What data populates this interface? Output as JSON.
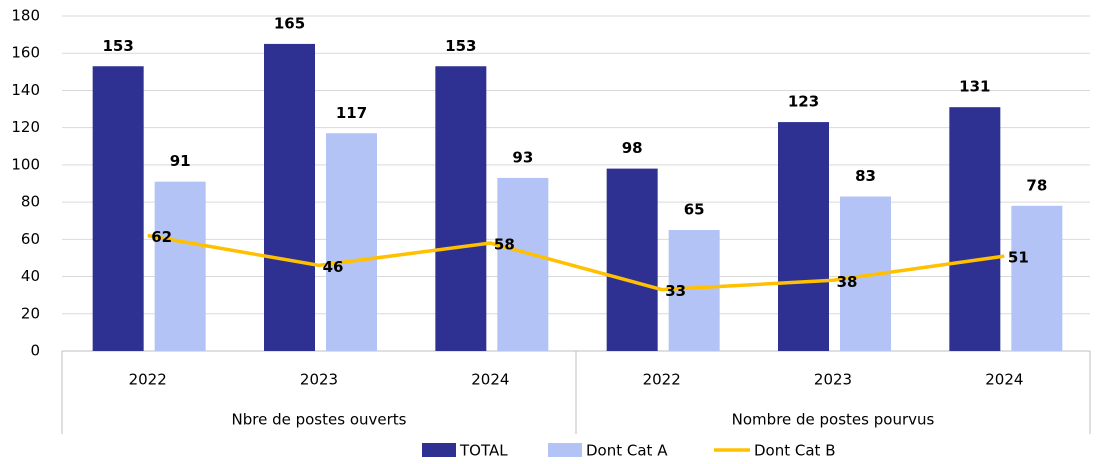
{
  "chart_data": {
    "type": "bar-line",
    "category_groups": [
      {
        "name": "Nbre de postes ouverts",
        "categories": [
          "2022",
          "2023",
          "2024"
        ]
      },
      {
        "name": "Nombre de postes pourvus",
        "categories": [
          "2022",
          "2023",
          "2024"
        ]
      }
    ],
    "series": [
      {
        "name": "TOTAL",
        "type": "bar",
        "color": "#2e3192",
        "values": [
          153,
          165,
          153,
          98,
          123,
          131
        ]
      },
      {
        "name": "Dont Cat A",
        "type": "bar",
        "color": "#b4c3f5",
        "values": [
          91,
          117,
          93,
          65,
          83,
          78
        ]
      },
      {
        "name": "Dont Cat B",
        "type": "line",
        "color": "#ffc000",
        "values": [
          62,
          46,
          58,
          33,
          38,
          51
        ]
      }
    ],
    "ylim": [
      0,
      180
    ],
    "yticks": [
      0,
      20,
      40,
      60,
      80,
      100,
      120,
      140,
      160,
      180
    ],
    "grid": true,
    "legend": "bottom"
  }
}
